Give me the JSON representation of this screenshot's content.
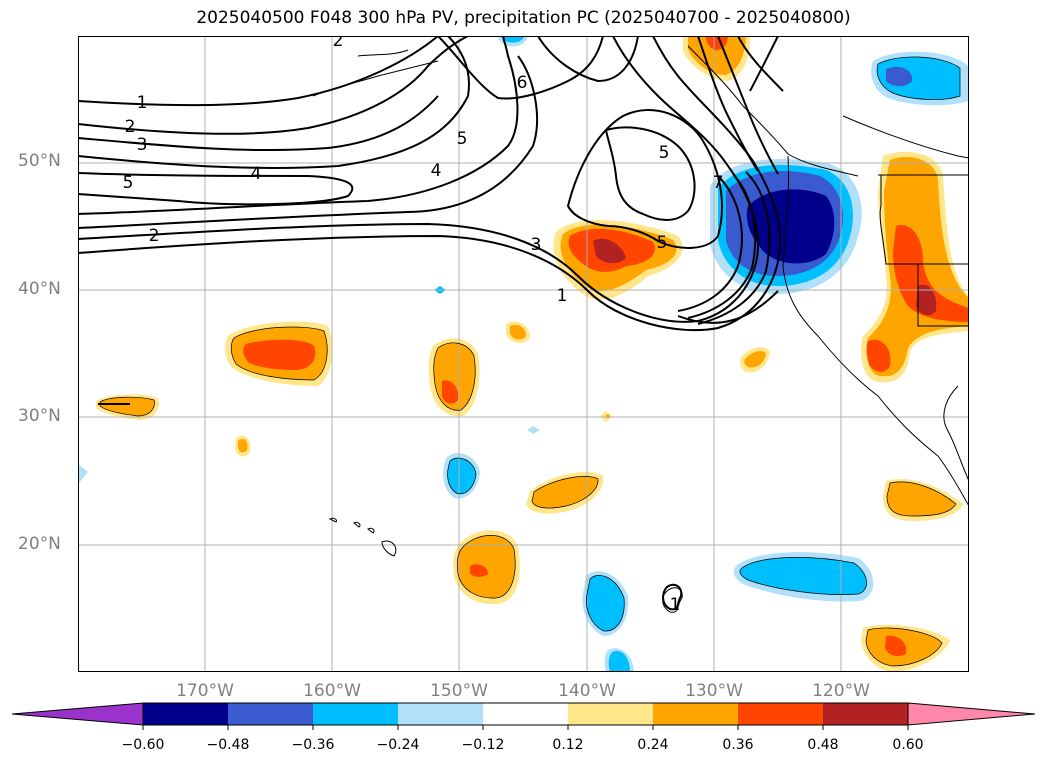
{
  "title": "2025040500 F048 300 hPa PV, precipitation PC (2025040700 - 2025040800)",
  "lat_labels": [
    "50°N",
    "40°N",
    "30°N",
    "20°N"
  ],
  "lon_labels": [
    "170°W",
    "160°W",
    "150°W",
    "140°W",
    "130°W",
    "120°W"
  ],
  "contour_labels": [
    "1",
    "2",
    "3",
    "5",
    "2",
    "4",
    "4",
    "5",
    "6",
    "3",
    "5",
    "5",
    "1",
    "2",
    "7",
    "1"
  ],
  "colorbar": {
    "ticks": [
      "−0.60",
      "−0.48",
      "−0.36",
      "−0.24",
      "−0.12",
      "0.12",
      "0.24",
      "0.36",
      "0.48",
      "0.60"
    ],
    "colors": [
      "#9933cc",
      "#00008b",
      "#3a5bd0",
      "#00bfff",
      "#b0e0fa",
      "#ffffff",
      "#ffe68a",
      "#ffa500",
      "#ff4500",
      "#b22222",
      "#ff88aa"
    ]
  },
  "fill_colors": {
    "neg_weak": "#b0e0fa",
    "neg_mid": "#00bfff",
    "neg_strong": "#3a5bd0",
    "neg_max": "#00008b",
    "pos_weak": "#ffe68a",
    "pos_mid": "#ffa500",
    "pos_strong": "#ff4500",
    "pos_max": "#b22222"
  }
}
